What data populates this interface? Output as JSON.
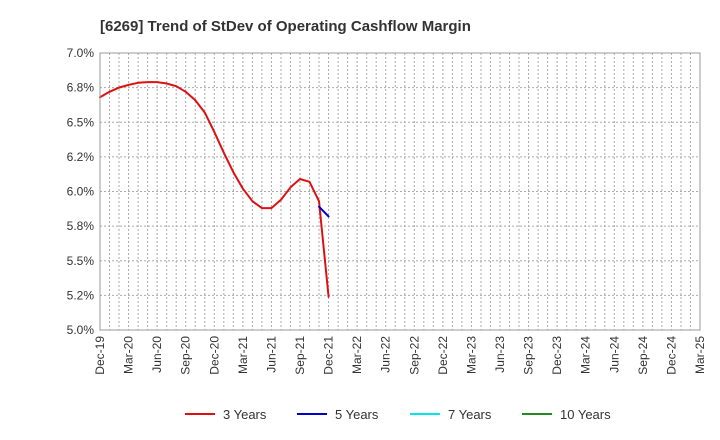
{
  "chart_data": {
    "type": "line",
    "title": "[6269]  Trend of StDev of Operating Cashflow Margin",
    "xlabel": "",
    "ylabel": "",
    "ylim": [
      5.0,
      7.0
    ],
    "yticks": [
      "5.0%",
      "5.2%",
      "5.5%",
      "5.8%",
      "6.0%",
      "6.2%",
      "6.5%",
      "6.8%",
      "7.0%"
    ],
    "x_range": [
      "Dec-19",
      "Mar-25"
    ],
    "xticks": [
      "Dec-19",
      "Mar-20",
      "Jun-20",
      "Sep-20",
      "Dec-20",
      "Mar-21",
      "Jun-21",
      "Sep-21",
      "Dec-21",
      "Mar-22",
      "Jun-22",
      "Sep-22",
      "Dec-22",
      "Mar-23",
      "Jun-23",
      "Sep-23",
      "Dec-23",
      "Mar-24",
      "Jun-24",
      "Sep-24",
      "Dec-24",
      "Mar-25"
    ],
    "grid": true,
    "legend_position": "bottom",
    "series": [
      {
        "name": "3 Years",
        "color": "#dd1111",
        "points": [
          [
            "Dec-19",
            6.68
          ],
          [
            "Jan-20",
            6.72
          ],
          [
            "Feb-20",
            6.75
          ],
          [
            "Mar-20",
            6.77
          ],
          [
            "Apr-20",
            6.785
          ],
          [
            "May-20",
            6.79
          ],
          [
            "Jun-20",
            6.79
          ],
          [
            "Jul-20",
            6.78
          ],
          [
            "Aug-20",
            6.76
          ],
          [
            "Sep-20",
            6.72
          ],
          [
            "Oct-20",
            6.66
          ],
          [
            "Nov-20",
            6.57
          ],
          [
            "Dec-20",
            6.43
          ],
          [
            "Jan-21",
            6.28
          ],
          [
            "Feb-21",
            6.14
          ],
          [
            "Mar-21",
            6.02
          ],
          [
            "Apr-21",
            5.93
          ],
          [
            "May-21",
            5.88
          ],
          [
            "Jun-21",
            5.88
          ],
          [
            "Jul-21",
            5.94
          ],
          [
            "Aug-21",
            6.03
          ],
          [
            "Sep-21",
            6.09
          ],
          [
            "Oct-21",
            6.07
          ],
          [
            "Nov-21",
            5.93
          ],
          [
            "Dec-21",
            5.24
          ]
        ]
      },
      {
        "name": "5 Years",
        "color": "#0000cc",
        "points": [
          [
            "Nov-21",
            5.89
          ],
          [
            "Dec-21",
            5.82
          ]
        ]
      },
      {
        "name": "7 Years",
        "color": "#00e5ee",
        "points": []
      },
      {
        "name": "10 Years",
        "color": "#228b22",
        "points": []
      }
    ]
  }
}
